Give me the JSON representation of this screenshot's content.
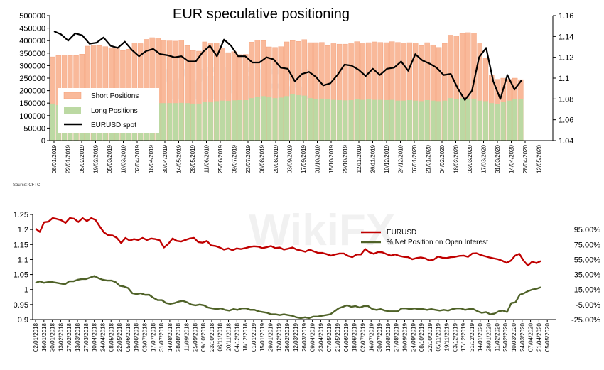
{
  "source": "Source: CFTC",
  "watermark": "WikiFX",
  "chart_data": [
    {
      "type": "bar",
      "title": "EUR speculative positioning",
      "ylim": [
        0,
        500000
      ],
      "y_ticks": [
        "500000",
        "450000",
        "400000",
        "350000",
        "300000",
        "250000",
        "200000",
        "150000",
        "100000",
        "50000",
        "0"
      ],
      "y2lim": [
        1.04,
        1.16
      ],
      "y2_ticks": [
        "1.16",
        "1.14",
        "1.12",
        "1.1",
        "1.08",
        "1.06",
        "1.04"
      ],
      "x_tick_labels": [
        "08/01/2019",
        "22/01/2019",
        "05/02/2019",
        "19/02/2019",
        "05/03/2019",
        "19/03/2019",
        "02/04/2019",
        "16/04/2019",
        "30/04/2019",
        "14/05/2019",
        "28/05/2019",
        "11/06/2019",
        "25/06/2019",
        "09/07/2019",
        "23/07/2019",
        "06/08/2019",
        "20/08/2019",
        "03/09/2019",
        "17/09/2019",
        "01/10/2019",
        "15/10/2019",
        "29/10/2019",
        "12/11/2019",
        "26/11/2019",
        "10/12/2019",
        "24/12/2019",
        "07/01/2020",
        "21/01/2020",
        "04/02/2020",
        "18/02/2020",
        "03/03/2020",
        "17/03/2020",
        "31/03/2020",
        "14/04/2020",
        "28/04/2020",
        "12/05/2020"
      ],
      "legend": {
        "placement": "left-middle",
        "entries": [
          "Short Positions",
          "Long Positions",
          "EURUSD spot"
        ]
      },
      "colors": {
        "short": "#f9b99a",
        "short_edge": "#f39b73",
        "long": "#bcd9a3",
        "spot": "#000000"
      },
      "series": [
        {
          "name": "Short Positions",
          "values": [
            335000,
            340000,
            342000,
            341000,
            340000,
            346000,
            378000,
            382000,
            380000,
            376000,
            372000,
            368000,
            360000,
            366000,
            390000,
            388000,
            405000,
            412000,
            411000,
            401000,
            399000,
            398000,
            402000,
            380000,
            360000,
            358000,
            395000,
            388000,
            390000,
            370000,
            352000,
            356000,
            344000,
            345000,
            394000,
            402000,
            400000,
            375000,
            373000,
            376000,
            395000,
            400000,
            397000,
            404000,
            392000,
            392000,
            393000,
            380000,
            388000,
            386000,
            386000,
            388000,
            396000,
            388000,
            392000,
            395000,
            393000,
            392000,
            396000,
            393000,
            391000,
            392000,
            390000,
            380000,
            392000,
            383000,
            373000,
            389000,
            422000,
            418000,
            428000,
            432000,
            430000,
            388000,
            330000,
            262000,
            245000,
            250000,
            245000,
            250000,
            244000
          ]
        },
        {
          "name": "Long Positions",
          "values": [
            148000,
            142000,
            145000,
            143000,
            143000,
            146000,
            146000,
            145000,
            145000,
            144000,
            144000,
            143000,
            142000,
            143000,
            145000,
            145000,
            145000,
            147000,
            150000,
            150000,
            150000,
            150000,
            151000,
            150000,
            148000,
            148000,
            155000,
            153000,
            158000,
            160000,
            159000,
            161000,
            162000,
            162000,
            170000,
            175000,
            178000,
            173000,
            170000,
            172000,
            178000,
            185000,
            182000,
            180000,
            170000,
            165000,
            168000,
            165000,
            163000,
            162000,
            161000,
            162000,
            165000,
            163000,
            165000,
            163000,
            163000,
            162000,
            163000,
            160000,
            160000,
            162000,
            160000,
            158000,
            162000,
            160000,
            158000,
            160000,
            170000,
            165000,
            170000,
            166000,
            168000,
            160000,
            158000,
            150000,
            147000,
            155000,
            160000,
            165000,
            165000
          ]
        },
        {
          "name": "EURUSD spot",
          "axis": "right",
          "values": [
            1.145,
            1.142,
            1.136,
            1.143,
            1.141,
            1.133,
            1.134,
            1.139,
            1.131,
            1.129,
            1.135,
            1.127,
            1.121,
            1.126,
            1.128,
            1.123,
            1.122,
            1.12,
            1.121,
            1.116,
            1.116,
            1.125,
            1.131,
            1.121,
            1.137,
            1.131,
            1.121,
            1.121,
            1.115,
            1.115,
            1.12,
            1.118,
            1.11,
            1.109,
            1.097,
            1.104,
            1.106,
            1.101,
            1.093,
            1.095,
            1.103,
            1.113,
            1.112,
            1.108,
            1.102,
            1.109,
            1.103,
            1.109,
            1.11,
            1.116,
            1.107,
            1.123,
            1.117,
            1.114,
            1.11,
            1.103,
            1.104,
            1.09,
            1.079,
            1.088,
            1.12,
            1.129,
            1.097,
            1.08,
            1.103,
            1.089,
            1.098
          ]
        }
      ]
    },
    {
      "type": "line",
      "ylim": [
        0.9,
        1.25
      ],
      "y_ticks": [
        "1.25",
        "1.2",
        "1.15",
        "1.1",
        "1.05",
        "1",
        "0.95",
        "0.9"
      ],
      "y2lim": [
        -25,
        115
      ],
      "y2_ticks": [
        "95.00%",
        "75.00%",
        "55.00%",
        "35.00%",
        "15.00%",
        "-5.00%",
        "-25.00%"
      ],
      "x_tick_labels": [
        "02/01/2018",
        "16/01/2018",
        "30/01/2018",
        "13/02/2018",
        "27/02/2018",
        "13/03/2018",
        "27/03/2018",
        "10/04/2018",
        "24/04/2018",
        "08/05/2018",
        "22/05/2018",
        "05/06/2018",
        "19/06/2018",
        "03/07/2018",
        "17/07/2018",
        "31/07/2018",
        "14/08/2018",
        "28/08/2018",
        "11/09/2018",
        "25/09/2018",
        "09/10/2018",
        "23/10/2018",
        "06/11/2018",
        "20/11/2018",
        "04/12/2018",
        "18/12/2018",
        "01/01/2019",
        "15/01/2019",
        "29/01/2019",
        "12/02/2019",
        "26/02/2019",
        "12/03/2019",
        "26/03/2019",
        "09/04/2019",
        "23/04/2019",
        "07/05/2019",
        "21/05/2019",
        "04/06/2019",
        "18/06/2019",
        "02/07/2019",
        "16/07/2019",
        "30/07/2019",
        "13/08/2019",
        "27/08/2019",
        "10/09/2019",
        "24/09/2019",
        "08/10/2019",
        "22/10/2019",
        "05/11/2019",
        "19/11/2019",
        "03/12/2019",
        "17/12/2019",
        "31/12/2019",
        "14/01/2020",
        "28/01/2020",
        "11/02/2020",
        "25/02/2020",
        "10/03/2020",
        "24/03/2020",
        "07/04/2020",
        "21/04/2020",
        "05/05/2020"
      ],
      "legend": {
        "placement": "top-right",
        "entries": [
          "EURUSD",
          "% Net Position on Open Interest"
        ]
      },
      "colors": {
        "eurusd": "#c00000",
        "net": "#4f6228"
      },
      "series": [
        {
          "name": "EURUSD",
          "axis": "left",
          "values": [
            1.203,
            1.192,
            1.224,
            1.226,
            1.238,
            1.235,
            1.231,
            1.222,
            1.238,
            1.236,
            1.225,
            1.238,
            1.228,
            1.238,
            1.232,
            1.21,
            1.19,
            1.181,
            1.18,
            1.172,
            1.155,
            1.172,
            1.163,
            1.168,
            1.165,
            1.172,
            1.165,
            1.17,
            1.168,
            1.164,
            1.14,
            1.152,
            1.17,
            1.162,
            1.16,
            1.165,
            1.17,
            1.172,
            1.158,
            1.156,
            1.162,
            1.147,
            1.145,
            1.14,
            1.133,
            1.137,
            1.131,
            1.137,
            1.135,
            1.138,
            1.142,
            1.144,
            1.143,
            1.138,
            1.141,
            1.145,
            1.138,
            1.14,
            1.133,
            1.136,
            1.14,
            1.133,
            1.13,
            1.126,
            1.133,
            1.127,
            1.122,
            1.122,
            1.118,
            1.113,
            1.117,
            1.12,
            1.12,
            1.112,
            1.108,
            1.117,
            1.117,
            1.135,
            1.124,
            1.119,
            1.125,
            1.124,
            1.118,
            1.113,
            1.117,
            1.112,
            1.109,
            1.108,
            1.101,
            1.105,
            1.107,
            1.104,
            1.097,
            1.1,
            1.11,
            1.106,
            1.105,
            1.108,
            1.109,
            1.112,
            1.113,
            1.109,
            1.12,
            1.121,
            1.115,
            1.111,
            1.107,
            1.104,
            1.101,
            1.096,
            1.089,
            1.096,
            1.113,
            1.119,
            1.096,
            1.08,
            1.093,
            1.088,
            1.095
          ]
        },
        {
          "name": "% Net Position on Open Interest",
          "axis": "right",
          "values": [
            24,
            26,
            24,
            25,
            25,
            24,
            23,
            22,
            26,
            26,
            28,
            29,
            29,
            31,
            33,
            30,
            28,
            27,
            27,
            25,
            20,
            19,
            17,
            10,
            9,
            10,
            8,
            8,
            4,
            1,
            1,
            -3,
            -4,
            -3,
            -1,
            0,
            -2,
            -5,
            -6,
            -5,
            -6,
            -9,
            -10,
            -11,
            -10,
            -12,
            -13,
            -11,
            -12,
            -10,
            -10,
            -12,
            -12,
            -14,
            -15,
            -16,
            -18,
            -18,
            -19,
            -18,
            -19,
            -20,
            -22,
            -23,
            -22,
            -23,
            -21,
            -21,
            -20,
            -19,
            -18,
            -14,
            -10,
            -8,
            -6,
            -8,
            -7,
            -9,
            -7,
            -7,
            -11,
            -12,
            -11,
            -13,
            -14,
            -14,
            -14,
            -10,
            -10,
            -11,
            -10,
            -11,
            -11,
            -12,
            -11,
            -12,
            -13,
            -12,
            -13,
            -11,
            -10,
            -10,
            -12,
            -11,
            -11,
            -14,
            -16,
            -15,
            -18,
            -17,
            -14,
            -13,
            -15,
            -3,
            -2,
            8,
            10,
            13,
            15,
            16,
            18
          ]
        }
      ]
    }
  ]
}
